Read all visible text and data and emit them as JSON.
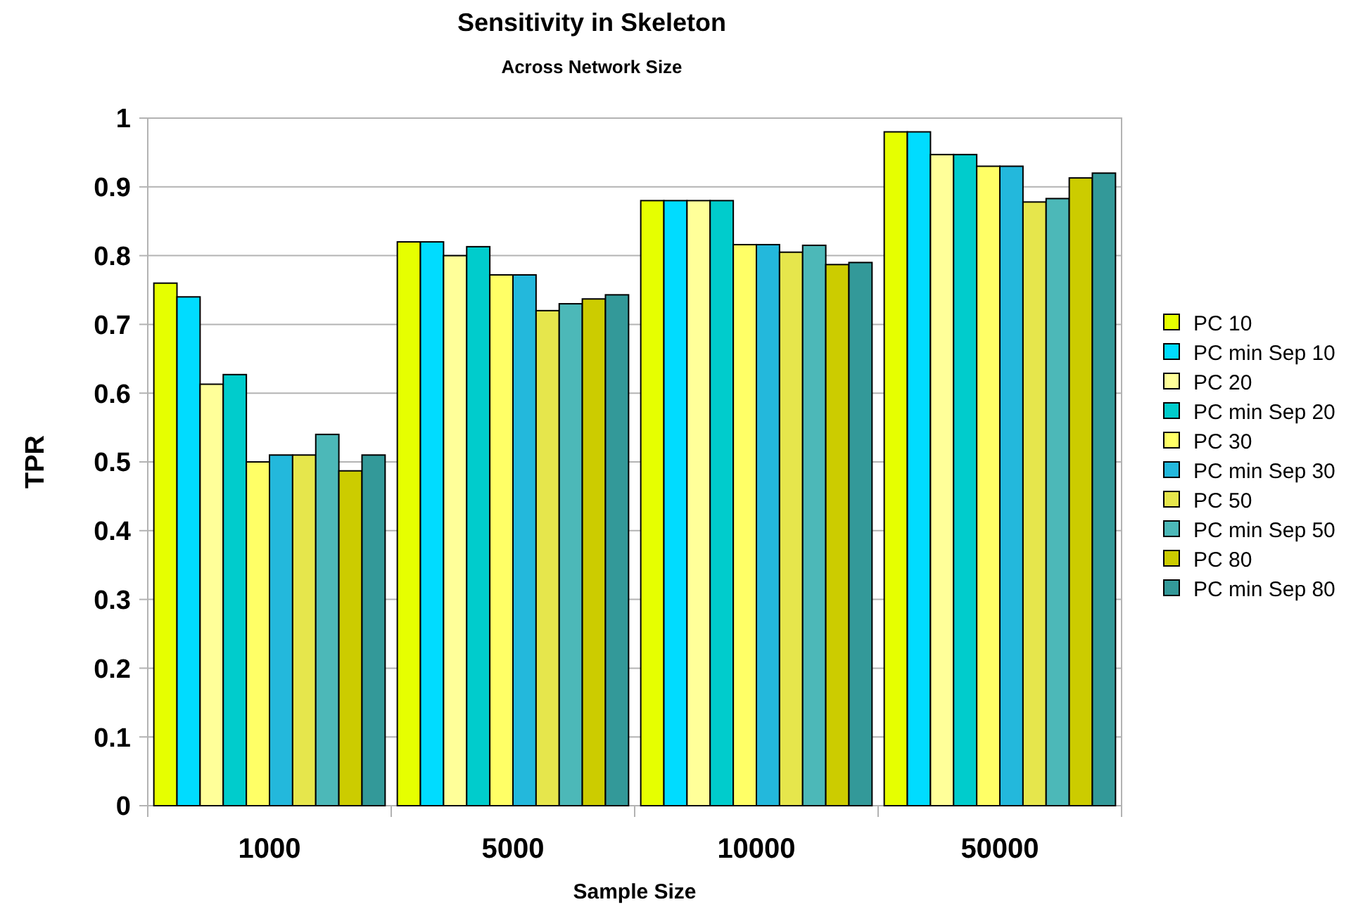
{
  "chart_data": {
    "type": "bar",
    "title": "Sensitivity in Skeleton",
    "subtitle": "Across Network Size",
    "xlabel": "Sample Size",
    "ylabel": "TPR",
    "categories": [
      "1000",
      "5000",
      "10000",
      "50000"
    ],
    "series": [
      {
        "name": "PC 10",
        "color": "#e6ff00",
        "values": [
          0.76,
          0.82,
          0.88,
          0.98
        ]
      },
      {
        "name": "PC min Sep 10",
        "color": "#00dcff",
        "values": [
          0.74,
          0.82,
          0.88,
          0.98
        ]
      },
      {
        "name": "PC 20",
        "color": "#ffff99",
        "values": [
          0.613,
          0.8,
          0.88,
          0.947
        ]
      },
      {
        "name": "PC min Sep 20",
        "color": "#00cccc",
        "values": [
          0.627,
          0.813,
          0.88,
          0.947
        ]
      },
      {
        "name": "PC 30",
        "color": "#ffff66",
        "values": [
          0.5,
          0.772,
          0.816,
          0.93
        ]
      },
      {
        "name": "PC min Sep 30",
        "color": "#23b8dc",
        "values": [
          0.51,
          0.772,
          0.816,
          0.93
        ]
      },
      {
        "name": "PC 50",
        "color": "#e6e64c",
        "values": [
          0.51,
          0.72,
          0.805,
          0.878
        ]
      },
      {
        "name": "PC min Sep 50",
        "color": "#4cb8b8",
        "values": [
          0.54,
          0.73,
          0.815,
          0.883
        ]
      },
      {
        "name": "PC 80",
        "color": "#cccc00",
        "values": [
          0.487,
          0.737,
          0.787,
          0.913
        ]
      },
      {
        "name": "PC min Sep 80",
        "color": "#339999",
        "values": [
          0.51,
          0.743,
          0.79,
          0.92
        ]
      }
    ],
    "ylim": [
      0,
      1
    ],
    "yticks": [
      0,
      0.1,
      0.2,
      0.3,
      0.4,
      0.5,
      0.6,
      0.7,
      0.8,
      0.9,
      1
    ],
    "grid": "y",
    "legend": "right"
  }
}
